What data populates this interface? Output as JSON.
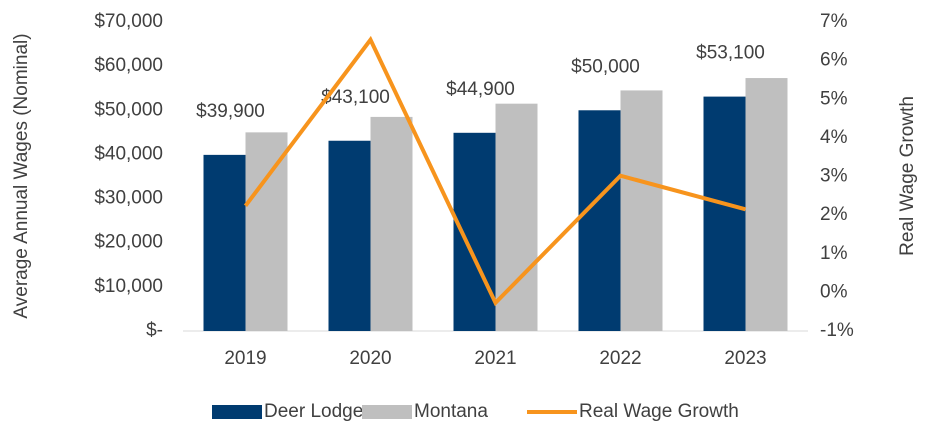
{
  "chart_data": {
    "type": "bar_line",
    "categories": [
      "2019",
      "2020",
      "2021",
      "2022",
      "2023"
    ],
    "series": [
      {
        "name": "Deer Lodge",
        "color": "#003b70",
        "values": [
          39900,
          43100,
          44900,
          50000,
          53100
        ],
        "value_labels": [
          "$39,900",
          "$43,100",
          "$44,900",
          "$50,000",
          "$53,100"
        ]
      },
      {
        "name": "Montana",
        "color": "#bfbfbf",
        "values": [
          45000,
          48500,
          51500,
          54500,
          57300
        ]
      },
      {
        "name": "Real Wage Growth",
        "color": "#f7941d",
        "axis": "y2",
        "values": [
          2.24,
          6.54,
          -0.27,
          3.02,
          2.15
        ]
      }
    ],
    "ylabel": "Average Annual Wages (Nominal)",
    "y2label": "Real Wage Growth",
    "ylim": [
      0,
      70000
    ],
    "yticks": [
      {
        "value": 0,
        "label": "$-"
      },
      {
        "value": 10000,
        "label": "$10,000"
      },
      {
        "value": 20000,
        "label": "$20,000"
      },
      {
        "value": 30000,
        "label": "$30,000"
      },
      {
        "value": 40000,
        "label": "$40,000"
      },
      {
        "value": 50000,
        "label": "$50,000"
      },
      {
        "value": 60000,
        "label": "$60,000"
      },
      {
        "value": 70000,
        "label": "$70,000"
      }
    ],
    "y2lim": [
      -1,
      7
    ],
    "y2ticks": [
      {
        "value": -1,
        "label": "-1%"
      },
      {
        "value": 0,
        "label": "0%"
      },
      {
        "value": 1,
        "label": "1%"
      },
      {
        "value": 2,
        "label": "2%"
      },
      {
        "value": 3,
        "label": "3%"
      },
      {
        "value": 4,
        "label": "4%"
      },
      {
        "value": 5,
        "label": "5%"
      },
      {
        "value": 6,
        "label": "6%"
      },
      {
        "value": 7,
        "label": "7%"
      }
    ],
    "legend": "bottom"
  }
}
